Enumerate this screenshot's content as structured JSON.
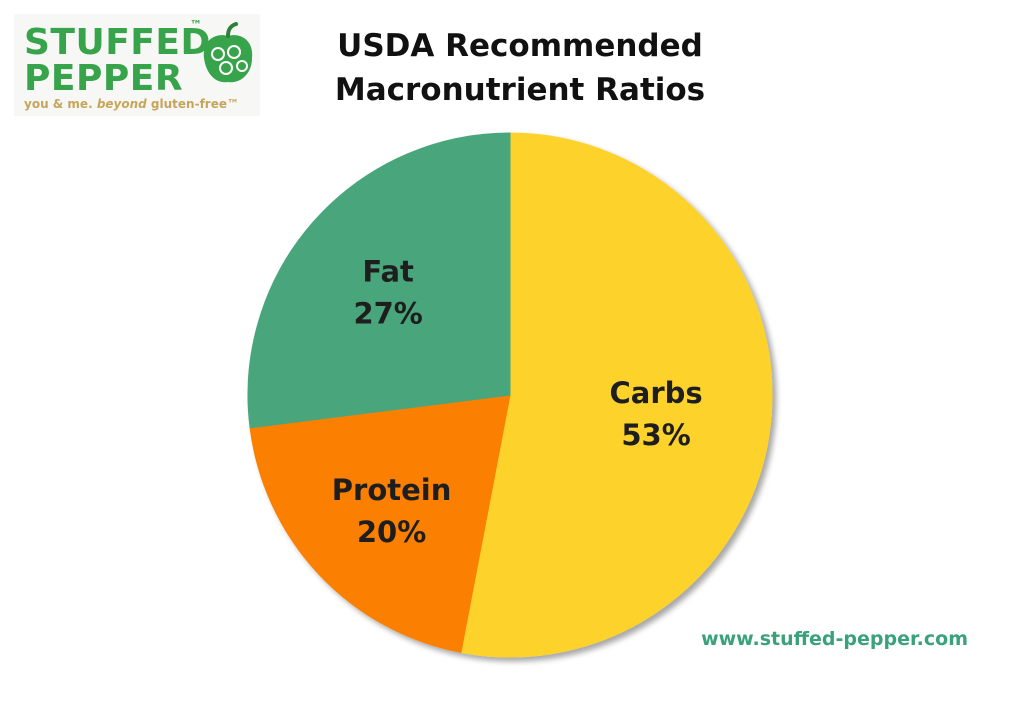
{
  "logo": {
    "line1": "STUFFED",
    "line2": "PEPPER",
    "tm": "™",
    "tagline_plain": "you & me. ",
    "tagline_italic": "beyond",
    "tagline_end": " gluten-free™"
  },
  "footer": {
    "url": "www.stuffed-pepper.com"
  },
  "chart_data": {
    "type": "pie",
    "title": "USDA Recommended Macronutrient Ratios",
    "title_lines": [
      "USDA Recommended",
      "Macronutrient Ratios"
    ],
    "slices": [
      {
        "label": "Carbs",
        "value": 53,
        "value_label": "53%",
        "color": "#fdd22b"
      },
      {
        "label": "Protein",
        "value": 20,
        "value_label": "20%",
        "color": "#fb7f00"
      },
      {
        "label": "Fat",
        "value": 27,
        "value_label": "27%",
        "color": "#48a67c"
      }
    ],
    "start_angle_deg": 0,
    "direction": "clockwise",
    "legend": "none"
  }
}
